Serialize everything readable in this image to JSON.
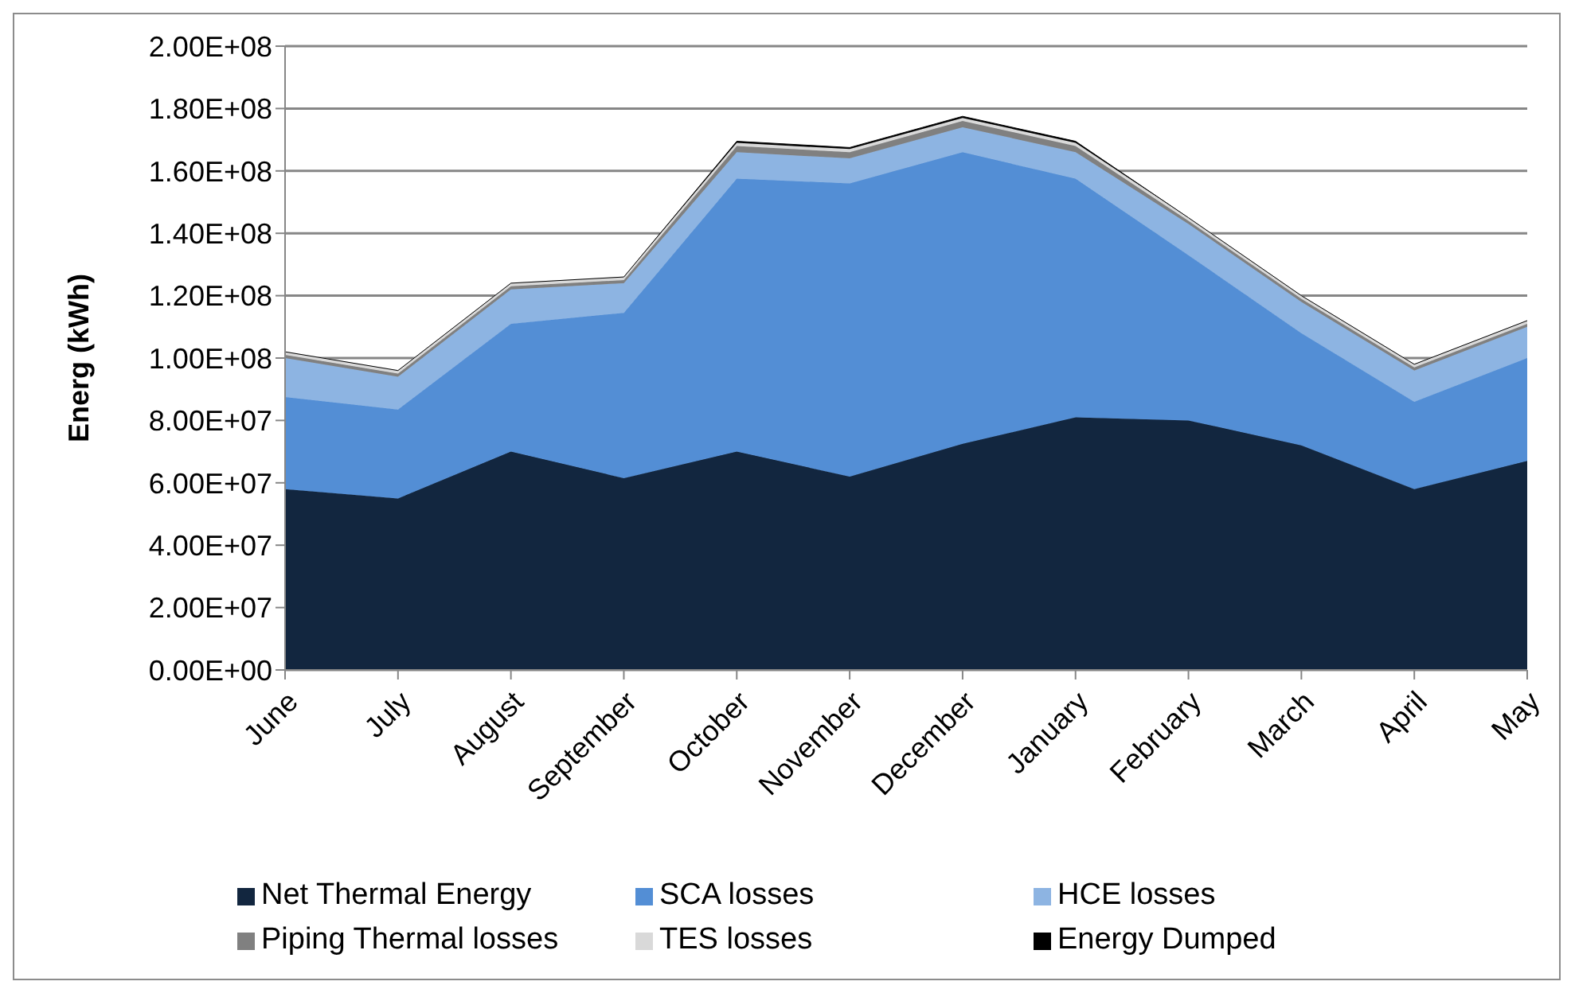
{
  "chart_data": {
    "type": "area",
    "stacked": true,
    "ylabel": "Energ (kWh)",
    "categories": [
      "June",
      "July",
      "August",
      "September",
      "October",
      "November",
      "December",
      "January",
      "February",
      "March",
      "April",
      "May"
    ],
    "series": [
      {
        "name": "Net Thermal Energy",
        "color": "#12263f",
        "values": [
          58000000,
          55000000,
          70000000,
          61500000,
          70000000,
          62000000,
          72500000,
          81000000,
          80000000,
          72000000,
          58000000,
          67000000
        ]
      },
      {
        "name": "SCA losses",
        "color": "#538ed5",
        "values": [
          29500000,
          28500000,
          41000000,
          53000000,
          87500000,
          94000000,
          93500000,
          76500000,
          53000000,
          36000000,
          28000000,
          33000000
        ]
      },
      {
        "name": "HCE losses",
        "color": "#8db4e2",
        "values": [
          12500000,
          10500000,
          11000000,
          9500000,
          8500000,
          8000000,
          8000000,
          8500000,
          10000000,
          10000000,
          10000000,
          10000000
        ]
      },
      {
        "name": "Piping Thermal losses",
        "color": "#808080",
        "values": [
          1000000,
          1000000,
          1000000,
          1000000,
          2000000,
          2000000,
          2000000,
          2000000,
          1000000,
          1000000,
          1000000,
          1000000
        ]
      },
      {
        "name": "TES losses",
        "color": "#d9d9d9",
        "values": [
          1000000,
          1000000,
          1000000,
          1000000,
          1000000,
          1000000,
          1000000,
          1000000,
          1000000,
          1000000,
          1000000,
          1000000
        ]
      },
      {
        "name": "Energy Dumped",
        "color": "#000000",
        "values": [
          0,
          0,
          0,
          0,
          500000,
          500000,
          500000,
          500000,
          0,
          0,
          0,
          0
        ]
      }
    ],
    "ylim": [
      0,
      200000000
    ],
    "yticks": [
      {
        "value": 0,
        "label": "0.00E+00"
      },
      {
        "value": 20000000,
        "label": "2.00E+07"
      },
      {
        "value": 40000000,
        "label": "4.00E+07"
      },
      {
        "value": 60000000,
        "label": "6.00E+07"
      },
      {
        "value": 80000000,
        "label": "8.00E+07"
      },
      {
        "value": 100000000,
        "label": "1.00E+08"
      },
      {
        "value": 120000000,
        "label": "1.20E+08"
      },
      {
        "value": 140000000,
        "label": "1.40E+08"
      },
      {
        "value": 160000000,
        "label": "1.60E+08"
      },
      {
        "value": 180000000,
        "label": "1.80E+08"
      },
      {
        "value": 200000000,
        "label": "2.00E+08"
      }
    ],
    "grid": "y",
    "legend": "bottom"
  }
}
